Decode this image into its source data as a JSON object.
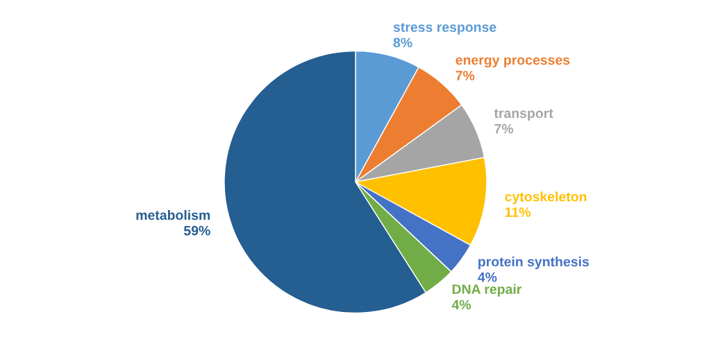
{
  "chart_data": {
    "type": "pie",
    "categories": [
      "stress response",
      "energy processes",
      "transport",
      "cytoskeleton",
      "protein synthesis",
      "DNA repair",
      "metabolism"
    ],
    "values": [
      8,
      7,
      7,
      11,
      4,
      4,
      59
    ],
    "value_labels": [
      "8%",
      "7%",
      "7%",
      "11%",
      "4%",
      "4%",
      "59%"
    ],
    "colors": [
      "#5b9bd5",
      "#ed7d31",
      "#a5a5a5",
      "#ffc000",
      "#4472c4",
      "#70ad47",
      "#255e91"
    ],
    "legend": false
  }
}
